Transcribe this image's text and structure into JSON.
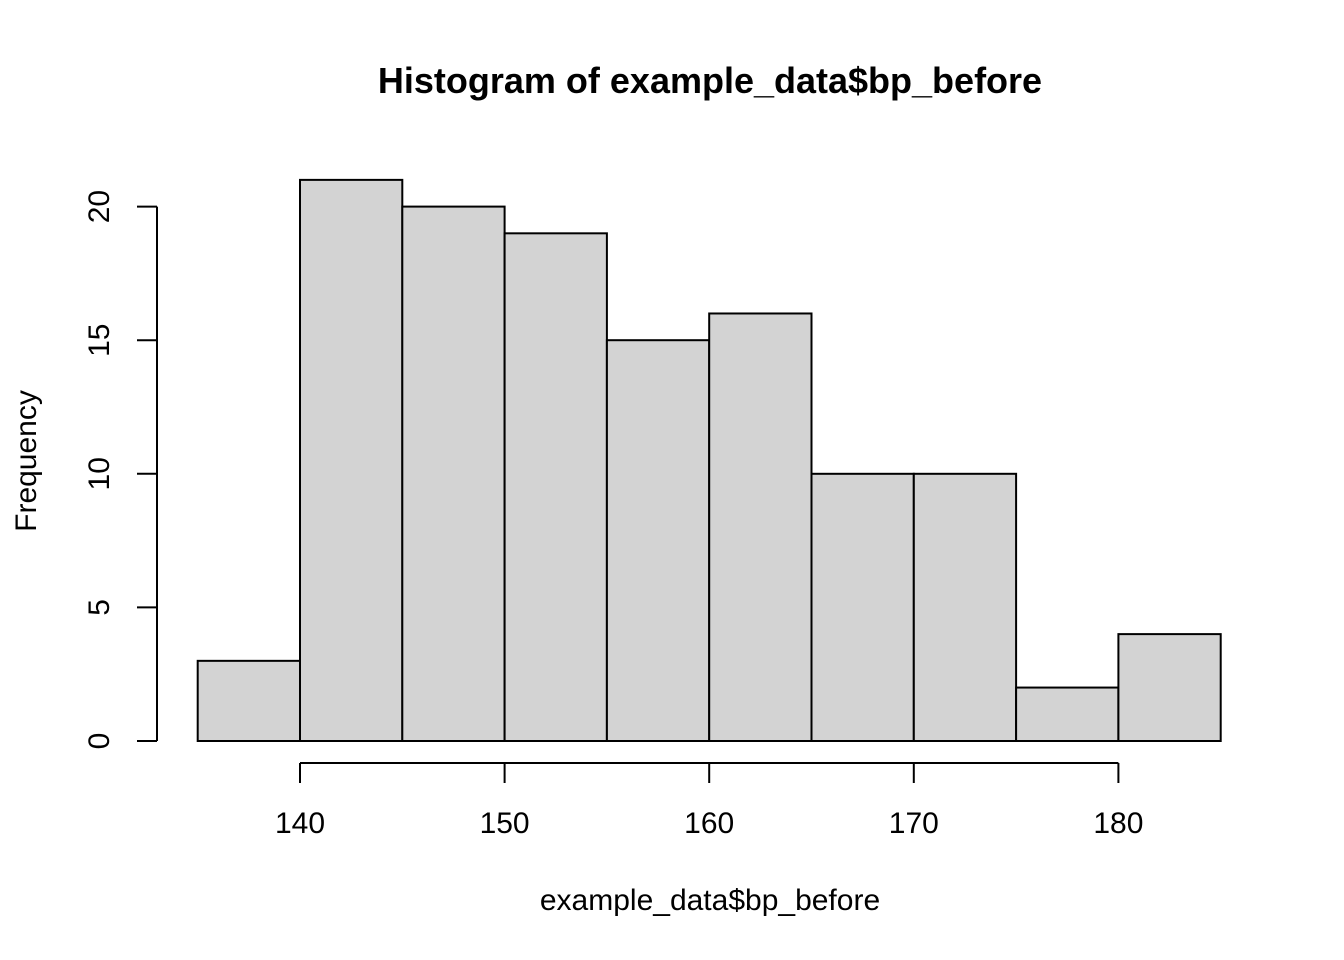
{
  "chart_data": {
    "type": "histogram",
    "title": "Histogram of example_data$bp_before",
    "xlabel": "example_data$bp_before",
    "ylabel": "Frequency",
    "bins": [
      {
        "start": 135,
        "end": 140,
        "count": 3
      },
      {
        "start": 140,
        "end": 145,
        "count": 21
      },
      {
        "start": 145,
        "end": 150,
        "count": 20
      },
      {
        "start": 150,
        "end": 155,
        "count": 19
      },
      {
        "start": 155,
        "end": 160,
        "count": 15
      },
      {
        "start": 160,
        "end": 165,
        "count": 16
      },
      {
        "start": 165,
        "end": 170,
        "count": 10
      },
      {
        "start": 170,
        "end": 175,
        "count": 10
      },
      {
        "start": 175,
        "end": 180,
        "count": 2
      },
      {
        "start": 180,
        "end": 185,
        "count": 4
      }
    ],
    "x_ticks": [
      140,
      150,
      160,
      170,
      180
    ],
    "y_ticks": [
      0,
      5,
      10,
      15,
      20
    ],
    "xlim": [
      135,
      185
    ],
    "ylim": [
      0,
      21
    ],
    "bar_fill": "#d3d3d3",
    "bar_stroke": "#000000",
    "grid": false,
    "legend": "none"
  }
}
